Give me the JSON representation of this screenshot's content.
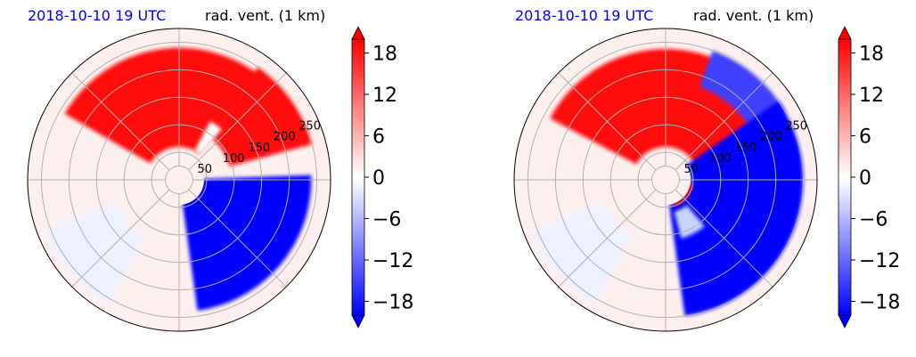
{
  "chart_data": [
    {
      "type": "polar-filled-contour",
      "title_left": "2018-10-10 19 UTC",
      "title_right": "rad. vent. (1 km)",
      "title_left_color": "#0000ff",
      "radial_ticks": [
        "50",
        "100",
        "150",
        "200",
        "250"
      ],
      "colorbar": {
        "ticks": [
          "18",
          "12",
          "6",
          "0",
          "−6",
          "−12",
          "−18"
        ],
        "range": [
          -20,
          20
        ],
        "extend": "both",
        "colormap": "bwr"
      },
      "regions": [
        {
          "sign": "positive",
          "area": "north-west arc 300-40 deg, 60-240 km"
        },
        {
          "sign": "positive",
          "area": "north-east spiral band 35-75 deg, 100-250 km"
        },
        {
          "sign": "negative",
          "area": "south-east sector 90-170 deg, 0-240 km"
        },
        {
          "sign": "positive",
          "area": "small core near center 90-140 deg, 5-40 km"
        }
      ]
    },
    {
      "type": "polar-filled-contour",
      "title_left": "2018-10-10 19 UTC",
      "title_right": "rad. vent. (1 km)",
      "title_left_color": "#0000ff",
      "radial_ticks": [
        "50",
        "100",
        "150",
        "200",
        "250"
      ],
      "colorbar": {
        "ticks": [
          "18",
          "12",
          "6",
          "0",
          "−6",
          "−12",
          "−18"
        ],
        "range": [
          -20,
          20
        ],
        "extend": "both",
        "colormap": "bwr"
      },
      "regions": [
        {
          "sign": "positive",
          "area": "north arc 300-80 deg, 60-240 km"
        },
        {
          "sign": "negative",
          "area": "east band 50-170 deg, 40-250 km"
        },
        {
          "sign": "positive",
          "area": "small core near center 100-160 deg, 10-50 km"
        }
      ]
    }
  ]
}
